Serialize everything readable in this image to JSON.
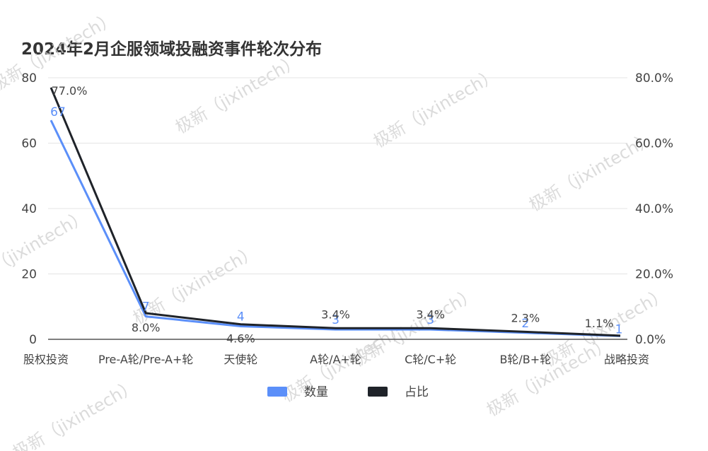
{
  "title": "2024年2月企服领域投融资事件轮次分布",
  "watermark": "极新（jixintech）",
  "chart_data": {
    "type": "line",
    "title": "2024年2月企服领域投融资事件轮次分布",
    "categories": [
      "股权投资",
      "Pre-A轮/Pre-A+轮",
      "天使轮",
      "A轮/A+轮",
      "C轮/C+轮",
      "B轮/B+轮",
      "战略投资"
    ],
    "series": [
      {
        "name": "数量",
        "axis": "left",
        "color": "#5b8ff9",
        "values": [
          67,
          7,
          4,
          3,
          3,
          2,
          1
        ],
        "labels": [
          "67",
          "7",
          "4",
          "3",
          "3",
          "2",
          "1"
        ]
      },
      {
        "name": "占比",
        "axis": "right",
        "color": "#1f2329",
        "values": [
          77.0,
          8.0,
          4.6,
          3.4,
          3.4,
          2.3,
          1.1
        ],
        "labels": [
          "77.0%",
          "8.0%",
          "4.6%",
          "3.4%",
          "3.4%",
          "2.3%",
          "1.1%"
        ]
      }
    ],
    "y_left": {
      "ylim": [
        0,
        80
      ],
      "ticks": [
        "0",
        "20",
        "40",
        "60",
        "80"
      ]
    },
    "y_right": {
      "ylim": [
        0,
        80
      ],
      "ticks": [
        "0.0%",
        "20.0%",
        "40.0%",
        "60.0%",
        "80.0%"
      ]
    },
    "grid": true,
    "legend_position": "bottom"
  }
}
